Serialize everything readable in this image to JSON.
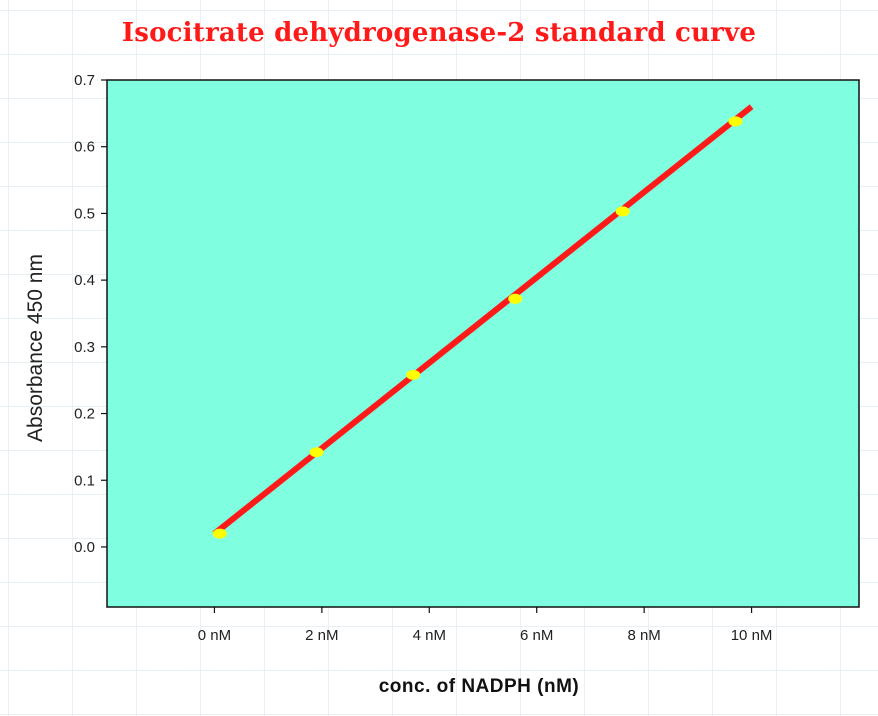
{
  "chart_data": {
    "type": "line",
    "title": "Isocitrate dehydrogenase-2 standard curve",
    "xlabel": "conc. of NADPH (nM)",
    "ylabel": "Absorbance 450 nm",
    "x_tick_labels": [
      "0 nM",
      "2 nM",
      "4 nM",
      "6 nM",
      "8 nM",
      "10 nM"
    ],
    "x_tick_values": [
      0,
      2,
      4,
      6,
      8,
      10
    ],
    "y_tick_labels": [
      "0.0",
      "0.1",
      "0.2",
      "0.3",
      "0.4",
      "0.5",
      "0.6",
      "0.7"
    ],
    "y_tick_values": [
      0,
      0.1,
      0.2,
      0.3,
      0.4,
      0.5,
      0.6,
      0.7
    ],
    "xlim": [
      -2,
      12
    ],
    "ylim": [
      -0.09,
      0.7
    ],
    "series": [
      {
        "type": "scatter",
        "x": [
          0.1,
          1.9,
          3.7,
          5.6,
          7.6,
          9.7
        ],
        "y": [
          0.02,
          0.142,
          0.258,
          0.372,
          0.503,
          0.638
        ]
      },
      {
        "type": "line",
        "x": [
          0,
          10
        ],
        "y": [
          0.02,
          0.66
        ]
      }
    ],
    "grid": false,
    "legend": "none",
    "colors": {
      "plot_background": "#7fffdf",
      "line": "#ff1a1a",
      "marker": "#ffff00",
      "title": "#ff1a1a"
    }
  }
}
